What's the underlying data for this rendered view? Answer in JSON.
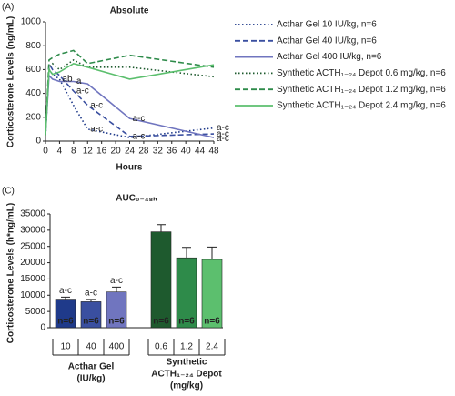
{
  "chart_data": [
    {
      "type": "line",
      "panel": "(A)",
      "title": "Absolute",
      "x_label": "Hours",
      "y_label": "Corticosterone Levels (ng/mL)",
      "x": [
        0,
        1,
        2,
        4,
        8,
        12,
        24,
        48
      ],
      "xlim": [
        0,
        48
      ],
      "xticks": [
        0,
        4,
        8,
        12,
        16,
        20,
        24,
        28,
        32,
        36,
        40,
        44,
        48
      ],
      "ylim": [
        0,
        1000
      ],
      "yticks": [
        0,
        200,
        400,
        600,
        800,
        1000
      ],
      "series": [
        {
          "name": "Acthar Gel 10 IU/kg, n=6",
          "color": "#1f3a8a",
          "dash": "dotted",
          "values": [
            50,
            600,
            560,
            520,
            300,
            100,
            30,
            110
          ]
        },
        {
          "name": "Acthar Gel 40 IU/kg, n=6",
          "color": "#3a4fa0",
          "dash": "dashed",
          "values": [
            50,
            650,
            600,
            550,
            420,
            300,
            40,
            60
          ]
        },
        {
          "name": "Acthar Gel 400 IU/kg, n=6",
          "color": "#7075bf",
          "dash": "solid",
          "values": [
            50,
            550,
            520,
            500,
            500,
            480,
            190,
            30
          ]
        },
        {
          "name": "Synthetic ACTH₁₋₂₄ Depot 0.6 mg/kg, n=6",
          "color": "#1e5a2e",
          "dash": "dotted",
          "values": [
            50,
            620,
            650,
            600,
            680,
            620,
            620,
            540
          ]
        },
        {
          "name": "Synthetic ACTH₁₋₂₄ Depot 1.2 mg/kg, n=6",
          "color": "#2e8b4a",
          "dash": "dashed",
          "values": [
            50,
            680,
            700,
            730,
            760,
            650,
            720,
            620
          ]
        },
        {
          "name": "Synthetic ACTH₁₋₂₄ Depot 2.4 mg/kg, n=6",
          "color": "#5cbf6e",
          "dash": "solid",
          "values": [
            50,
            600,
            560,
            580,
            650,
            620,
            520,
            640
          ]
        }
      ],
      "annotations": [
        {
          "text": "ab",
          "x": 4,
          "y": 520
        },
        {
          "text": "a",
          "x": 8,
          "y": 500
        },
        {
          "text": "a-c",
          "x": 8,
          "y": 420
        },
        {
          "text": "a-c",
          "x": 12,
          "y": 300
        },
        {
          "text": "a-c",
          "x": 12,
          "y": 100
        },
        {
          "text": "a-c",
          "x": 24,
          "y": 190
        },
        {
          "text": "a-c",
          "x": 24,
          "y": 40
        },
        {
          "text": "a-c",
          "x": 48,
          "y": 110
        },
        {
          "text": "a-c",
          "x": 48,
          "y": 60
        },
        {
          "text": "a-c",
          "x": 48,
          "y": 20
        }
      ]
    },
    {
      "type": "bar",
      "panel": "(C)",
      "title": "AUC₀₋₄₈ₕ",
      "y_label": "Corticosterone Levels (h*ng/mL)",
      "ylim": [
        0,
        35000
      ],
      "yticks": [
        0,
        5000,
        10000,
        15000,
        20000,
        25000,
        30000,
        35000
      ],
      "groups": [
        {
          "label": [
            "Acthar Gel",
            "(IU/kg)"
          ],
          "categories": [
            "10",
            "40",
            "400"
          ],
          "values": [
            8800,
            8000,
            11000
          ],
          "errors": [
            600,
            700,
            1500
          ],
          "colors": [
            "#1f3a8a",
            "#3a4fa0",
            "#7075bf"
          ],
          "bar_labels": [
            "n=6",
            "n=6",
            "n=6"
          ],
          "notes": [
            "a-c",
            "a-c",
            "a-c"
          ]
        },
        {
          "label": [
            "Synthetic",
            "ACTH₁₋₂₄ Depot",
            "(mg/kg)"
          ],
          "categories": [
            "0.6",
            "1.2",
            "2.4"
          ],
          "values": [
            29500,
            21500,
            21000
          ],
          "errors": [
            2200,
            3200,
            3800
          ],
          "colors": [
            "#1e5a2e",
            "#2e8b4a",
            "#5cbf6e"
          ],
          "bar_labels": [
            "n=6",
            "n=6",
            "n=6"
          ]
        }
      ]
    }
  ]
}
